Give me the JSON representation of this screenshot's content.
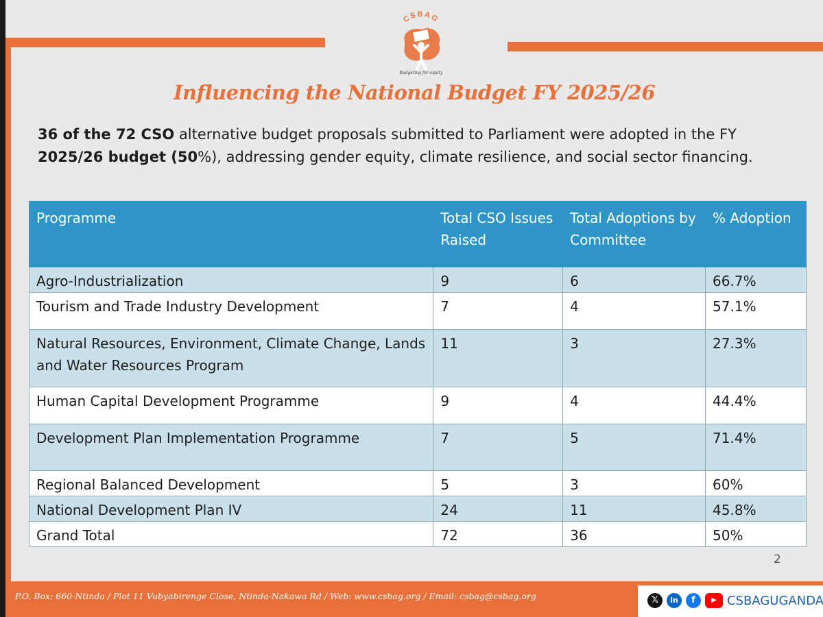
{
  "logo": {
    "name": "CSBAG",
    "tagline": "Budgeting for equity"
  },
  "title": "Influencing the National Budget FY 2025/26",
  "intro": {
    "bold1": "36 of the 72 CSO",
    "text1": " alternative budget proposals submitted to Parliament were adopted in the FY ",
    "bold2": "2025/26 budget  (50",
    "text2": "%), addressing gender equity, climate resilience, and social sector financing."
  },
  "table": {
    "headers": [
      "Programme",
      "Total CSO Issues Raised",
      "Total Adoptions by Committee",
      "% Adoption"
    ],
    "rows": [
      {
        "programme": "Agro-Industrialization",
        "raised": "9",
        "adopted": "6",
        "pct": "66.7%"
      },
      {
        "programme": "Tourism and Trade Industry Development",
        "raised": "7",
        "adopted": "4",
        "pct": "57.1%"
      },
      {
        "programme": "Natural Resources, Environment, Climate Change, Lands and Water Resources Program",
        "raised": "11",
        "adopted": "3",
        "pct": "27.3%"
      },
      {
        "programme": "Human Capital Development Programme",
        "raised": "9",
        "adopted": "4",
        "pct": "44.4%"
      },
      {
        "programme": "Development Plan Implementation Programme",
        "raised": "7",
        "adopted": "5",
        "pct": "71.4%"
      },
      {
        "programme": "Regional Balanced Development",
        "raised": "5",
        "adopted": "3",
        "pct": "60%"
      },
      {
        "programme": "National Development Plan IV",
        "raised": "24",
        "adopted": "11",
        "pct": "45.8%"
      },
      {
        "programme": "Grand Total",
        "raised": "72",
        "adopted": "36",
        "pct": "50%"
      }
    ]
  },
  "page_number": "2",
  "footer": {
    "address": "P.O. Box: 660-Ntinda / Plot 11 Vubyabirenge Close, Ntinda-Nakawa Rd / Web: www.csbag.org / Email: csbag@csbag.org",
    "social_icons": [
      "x-icon",
      "linkedin-icon",
      "facebook-icon",
      "youtube-icon"
    ],
    "handle": "CSBAGUGANDA"
  },
  "colors": {
    "accent": "#e8703a",
    "header_blue": "#2e95c6",
    "row_shade": "#c9dfe9"
  }
}
